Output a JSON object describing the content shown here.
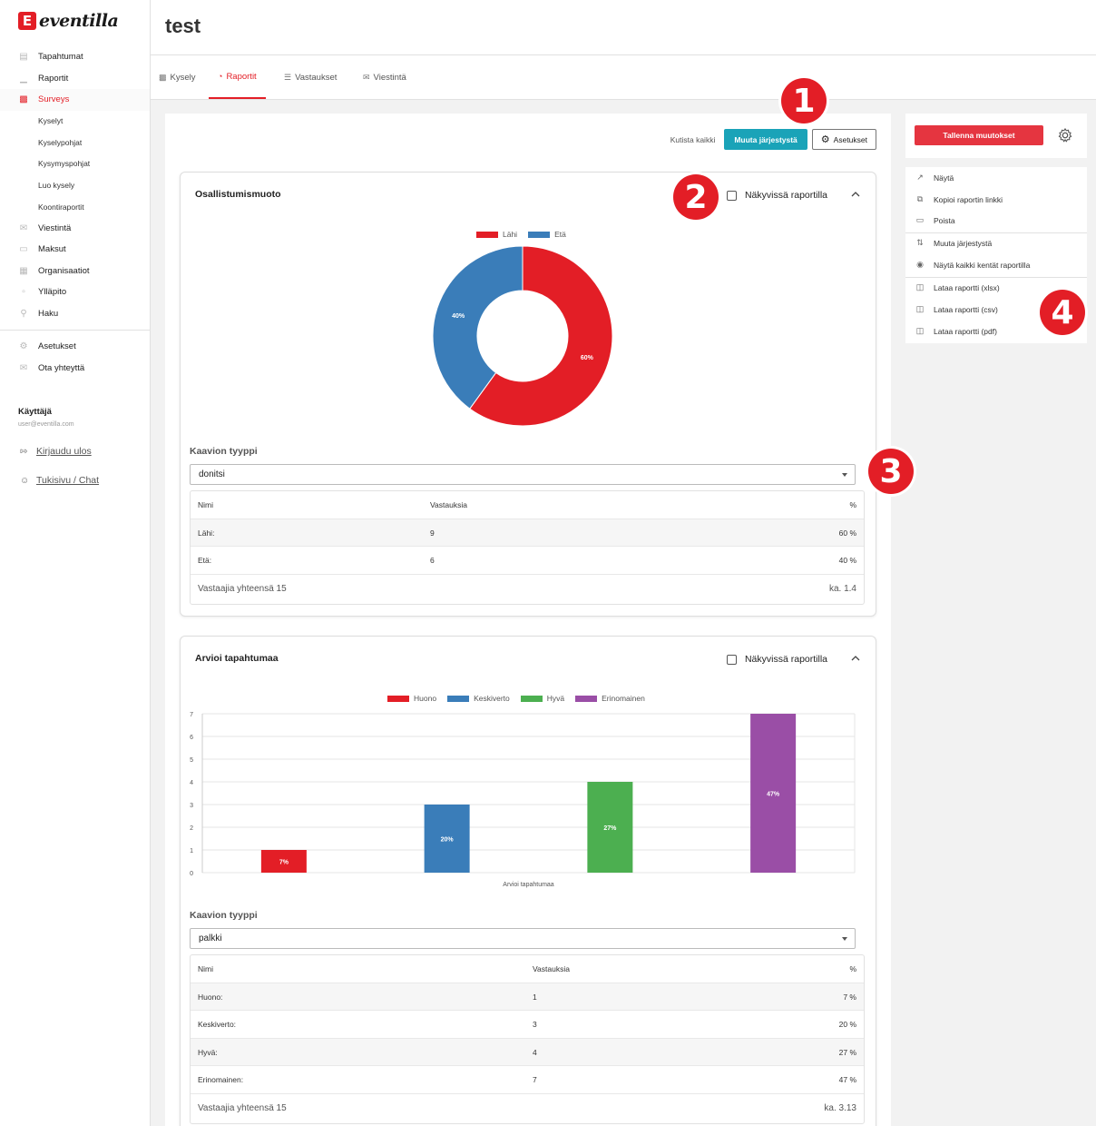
{
  "brand": {
    "logo_text": "eventilla",
    "logo_mark": "E"
  },
  "sidebar": {
    "items": [
      {
        "label": "Tapahtumat",
        "icon": "calendar-icon"
      },
      {
        "label": "Raportit",
        "icon": "chart-icon"
      },
      {
        "label": "Surveys",
        "icon": "clipboard-icon",
        "active": true
      }
    ],
    "sub_items": [
      "Kyselyt",
      "Kyselypohjat",
      "Kysymyspohjat",
      "Luo kysely",
      "Koontiraportit"
    ],
    "items2": [
      {
        "label": "Viestintä",
        "icon": "mail-icon"
      },
      {
        "label": "Maksut",
        "icon": "wallet-icon"
      },
      {
        "label": "Organisaatiot",
        "icon": "building-icon"
      },
      {
        "label": "Ylläpito",
        "icon": "toolbox-icon"
      },
      {
        "label": "Haku",
        "icon": "search-icon"
      }
    ],
    "items3": [
      {
        "label": "Asetukset",
        "icon": "gear-icon"
      },
      {
        "label": "Ota yhteyttä",
        "icon": "mail-icon"
      }
    ],
    "user_label": "Käyttäjä",
    "user_email": "user@eventilla.com",
    "logout": "Kirjaudu ulos",
    "support": "Tukisivu / Chat"
  },
  "header": {
    "title": "test"
  },
  "tabs": [
    {
      "label": "Kysely",
      "icon": "clipboard-icon"
    },
    {
      "label": "Raportit",
      "icon": "report-icon",
      "active": true
    },
    {
      "label": "Vastaukset",
      "icon": "list-icon"
    },
    {
      "label": "Viestintä",
      "icon": "mail-icon"
    }
  ],
  "toolbar": {
    "collapse_all": "Kutista kaikki",
    "reorder": "Muuta järjestystä",
    "settings": "Asetukset"
  },
  "panels": [
    {
      "title": "Osallistumismuoto",
      "visible_label": "Näkyvissä raportilla",
      "chart_type_label": "Kaavion tyyppi",
      "chart_type_value": "donitsi",
      "table_headers": [
        "Nimi",
        "Vastauksia",
        "%"
      ],
      "rows": [
        {
          "name": "Lähi:",
          "count": "9",
          "pct": "60 %"
        },
        {
          "name": "Etä:",
          "count": "6",
          "pct": "40 %"
        }
      ],
      "footer_left": "Vastaajia yhteensä 15",
      "footer_right": "ka. 1.4"
    },
    {
      "title": "Arvioi tapahtumaa",
      "visible_label": "Näkyvissä raportilla",
      "chart_type_label": "Kaavion tyyppi",
      "chart_type_value": "palkki",
      "table_headers": [
        "Nimi",
        "Vastauksia",
        "%"
      ],
      "rows": [
        {
          "name": "Huono:",
          "count": "1",
          "pct": "7 %"
        },
        {
          "name": "Keskiverto:",
          "count": "3",
          "pct": "20 %"
        },
        {
          "name": "Hyvä:",
          "count": "4",
          "pct": "27 %"
        },
        {
          "name": "Erinomainen:",
          "count": "7",
          "pct": "47 %"
        }
      ],
      "footer_left": "Vastaajia yhteensä 15",
      "footer_right": "ka. 3.13"
    }
  ],
  "chart_data": [
    {
      "type": "pie",
      "donut": true,
      "categories": [
        "Lähi",
        "Etä"
      ],
      "values": [
        60,
        40
      ],
      "labels": [
        "60%",
        "40%"
      ],
      "colors": [
        "#e31e26",
        "#3a7db9"
      ],
      "legend": "top"
    },
    {
      "type": "bar",
      "categories": [
        "Huono",
        "Keskiverto",
        "Hyvä",
        "Erinomainen"
      ],
      "values": [
        1,
        3,
        4,
        7
      ],
      "labels": [
        "7%",
        "20%",
        "27%",
        "47%"
      ],
      "colors": [
        "#e31e26",
        "#3a7db9",
        "#4caf50",
        "#9a4ea6"
      ],
      "xlabel": "Arvioi tapahtumaa",
      "ylim": [
        0,
        7
      ],
      "yticks": [
        "0",
        "1",
        "2",
        "3",
        "4",
        "5",
        "6",
        "7"
      ],
      "grid": true,
      "legend": "top"
    }
  ],
  "right_panel": {
    "save": "Tallenna muutokset",
    "menu": [
      {
        "label": "Näytä",
        "icon": "external-link-icon"
      },
      {
        "label": "Kopioi raportin linkki",
        "icon": "copy-icon"
      },
      {
        "label": "Poista",
        "icon": "trash-icon"
      },
      {
        "label": "Muuta järjestystä",
        "icon": "sort-icon"
      },
      {
        "label": "Näytä kaikki kentät raportilla",
        "icon": "eye-icon"
      },
      {
        "label": "Lataa raportti (xlsx)",
        "icon": "file-icon"
      },
      {
        "label": "Lataa raportti (csv)",
        "icon": "file-icon"
      },
      {
        "label": "Lataa raportti (pdf)",
        "icon": "file-icon"
      }
    ]
  },
  "badges": [
    "1",
    "2",
    "3",
    "4"
  ],
  "colors": {
    "accent": "#e31e26",
    "teal": "#1aa3b8",
    "save": "#e53540"
  }
}
